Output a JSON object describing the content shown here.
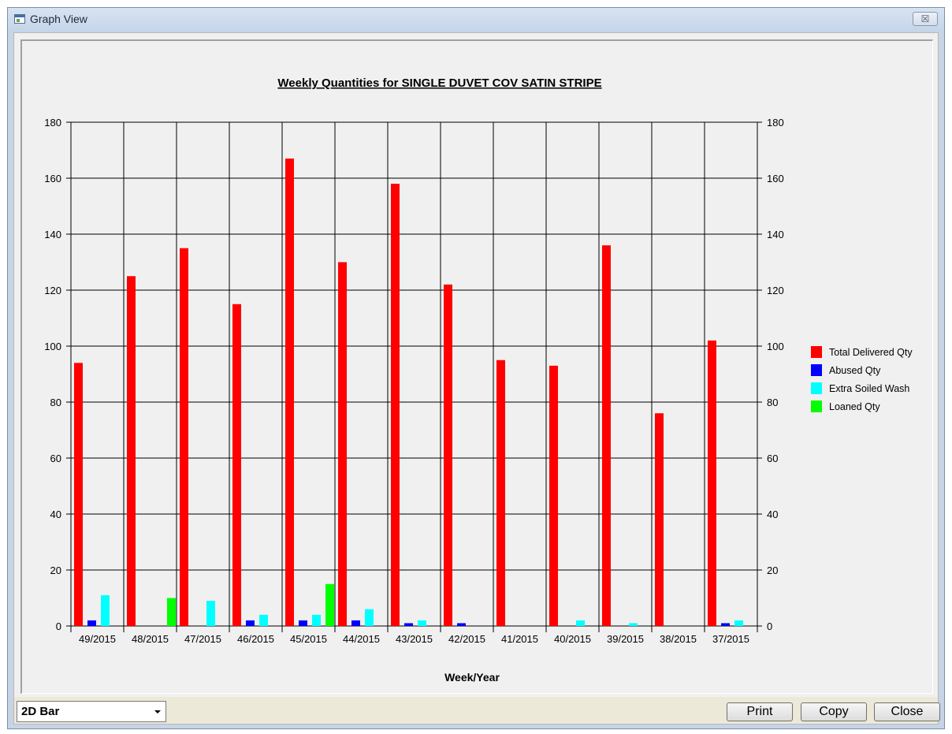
{
  "window": {
    "title": "Graph View",
    "close_glyph": "☒"
  },
  "chart_data": {
    "type": "bar",
    "title": "Weekly Quantities for SINGLE DUVET COV SATIN STRIPE",
    "xlabel": "Week/Year",
    "ylabel": "",
    "ylim": [
      0,
      180
    ],
    "yticks": [
      0,
      20,
      40,
      60,
      80,
      100,
      120,
      140,
      160,
      180
    ],
    "grid": true,
    "legend_position": "right",
    "categories": [
      "49/2015",
      "48/2015",
      "47/2015",
      "46/2015",
      "45/2015",
      "44/2015",
      "43/2015",
      "42/2015",
      "41/2015",
      "40/2015",
      "39/2015",
      "38/2015",
      "37/2015"
    ],
    "series": [
      {
        "name": "Total Delivered Qty",
        "color": "#ff0000",
        "values": [
          94,
          125,
          135,
          115,
          167,
          130,
          158,
          122,
          95,
          93,
          136,
          76,
          102
        ]
      },
      {
        "name": "Abused Qty",
        "color": "#0000ff",
        "values": [
          2,
          0,
          0,
          2,
          2,
          2,
          1,
          1,
          0,
          0,
          0,
          0,
          1
        ]
      },
      {
        "name": "Extra Soiled Wash",
        "color": "#00ffff",
        "values": [
          11,
          0,
          9,
          4,
          4,
          6,
          2,
          0,
          0,
          2,
          1,
          0,
          2
        ]
      },
      {
        "name": "Loaned Qty",
        "color": "#00ff00",
        "values": [
          0,
          10,
          0,
          0,
          15,
          0,
          0,
          0,
          0,
          0,
          0,
          0,
          0
        ]
      }
    ]
  },
  "controls": {
    "graph_type": "2D Bar",
    "print_label": "Print",
    "copy_label": "Copy",
    "close_label": "Close"
  }
}
